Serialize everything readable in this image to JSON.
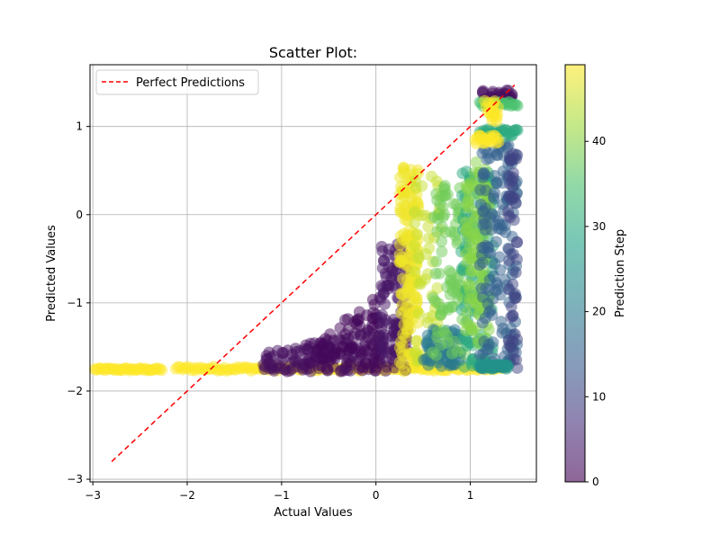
{
  "chart_data": {
    "type": "scatter",
    "title": "Scatter Plot:",
    "xlabel": "Actual Values",
    "ylabel": "Predicted Values",
    "xlim": [
      -3.03,
      1.7
    ],
    "ylim": [
      -3.03,
      1.7
    ],
    "xticks": [
      {
        "value": -3,
        "label": "−3"
      },
      {
        "value": -2,
        "label": "−2"
      },
      {
        "value": -1,
        "label": "−1"
      },
      {
        "value": 0,
        "label": "0"
      },
      {
        "value": 1,
        "label": "1"
      }
    ],
    "yticks": [
      {
        "value": -3,
        "label": "−3"
      },
      {
        "value": -2,
        "label": "−2"
      },
      {
        "value": -1,
        "label": "−1"
      },
      {
        "value": 0,
        "label": "0"
      },
      {
        "value": 1,
        "label": "1"
      }
    ],
    "grid": true,
    "legend": {
      "position": "top-left",
      "entries": [
        "Perfect Predictions"
      ]
    },
    "reference_line": {
      "name": "Perfect Predictions",
      "x": [
        -2.8,
        1.47
      ],
      "y": [
        -2.8,
        1.47
      ],
      "color": "#ff0000",
      "style": "dashed"
    },
    "colorbar": {
      "label": "Prediction Step",
      "range": [
        0,
        49
      ],
      "ticks": [
        {
          "value": 0,
          "label": "0"
        },
        {
          "value": 10,
          "label": "10"
        },
        {
          "value": 20,
          "label": "20"
        },
        {
          "value": 30,
          "label": "30"
        },
        {
          "value": 40,
          "label": "40"
        }
      ],
      "colormap": [
        "#440154",
        "#46327e",
        "#365c8d",
        "#277f8e",
        "#1fa187",
        "#4ac16d",
        "#a0da39",
        "#fde725"
      ],
      "alpha": 0.5
    },
    "clusters": [
      {
        "step": 49,
        "x_range": [
          -2.98,
          -2.27
        ],
        "y_range": [
          -1.77,
          -1.74
        ],
        "count": 40,
        "shape": "band"
      },
      {
        "step": 49,
        "x_range": [
          -2.12,
          1.37
        ],
        "y_range": [
          -1.77,
          -1.72
        ],
        "count": 150,
        "shape": "band"
      },
      {
        "step": 2,
        "x_range": [
          -1.2,
          0.35
        ],
        "y_range": [
          -1.78,
          -1.2
        ],
        "count": 170,
        "shape": "triangle"
      },
      {
        "step": 1,
        "x_range": [
          -0.7,
          0.05
        ],
        "y_range": [
          -1.78,
          -0.9
        ],
        "count": 70,
        "shape": "triangle"
      },
      {
        "step": 3,
        "x_range": [
          0.05,
          0.35
        ],
        "y_range": [
          -1.6,
          -0.25
        ],
        "count": 90,
        "shape": "rect"
      },
      {
        "step": 48,
        "x_range": [
          0.25,
          0.45
        ],
        "y_range": [
          -1.78,
          0.6
        ],
        "count": 150,
        "shape": "rect"
      },
      {
        "step": 45,
        "x_range": [
          0.4,
          0.7
        ],
        "y_range": [
          -1.7,
          0.5
        ],
        "count": 60,
        "shape": "rect"
      },
      {
        "step": 20,
        "x_range": [
          0.5,
          0.9
        ],
        "y_range": [
          -1.72,
          -1.3
        ],
        "count": 60,
        "shape": "rect"
      },
      {
        "step": 38,
        "x_range": [
          0.6,
          0.95
        ],
        "y_range": [
          -1.6,
          0.5
        ],
        "count": 90,
        "shape": "rect"
      },
      {
        "step": 30,
        "x_range": [
          0.9,
          1.25
        ],
        "y_range": [
          -1.73,
          0.5
        ],
        "count": 110,
        "shape": "rect"
      },
      {
        "step": 40,
        "x_range": [
          0.95,
          1.2
        ],
        "y_range": [
          -1.5,
          0.6
        ],
        "count": 110,
        "shape": "rect"
      },
      {
        "step": 15,
        "x_range": [
          1.1,
          1.5
        ],
        "y_range": [
          -1.75,
          0.8
        ],
        "count": 150,
        "shape": "rect"
      },
      {
        "step": 10,
        "x_range": [
          1.4,
          1.5
        ],
        "y_range": [
          -1.75,
          0.7
        ],
        "count": 50,
        "shape": "rect"
      },
      {
        "step": 25,
        "x_range": [
          1.1,
          1.4
        ],
        "y_range": [
          -1.75,
          -1.7
        ],
        "count": 50,
        "shape": "band"
      },
      {
        "step": 2,
        "x_range": [
          1.1,
          1.45
        ],
        "y_range": [
          1.3,
          1.42
        ],
        "count": 30,
        "shape": "rect"
      },
      {
        "step": 35,
        "x_range": [
          1.1,
          1.5
        ],
        "y_range": [
          1.23,
          1.28
        ],
        "count": 25,
        "shape": "band"
      },
      {
        "step": 30,
        "x_range": [
          1.1,
          1.5
        ],
        "y_range": [
          0.88,
          0.97
        ],
        "count": 30,
        "shape": "band"
      },
      {
        "step": 49,
        "x_range": [
          1.05,
          1.3
        ],
        "y_range": [
          0.8,
          0.9
        ],
        "count": 20,
        "shape": "band"
      },
      {
        "step": 49,
        "x_range": [
          1.15,
          1.3
        ],
        "y_range": [
          1.05,
          1.3
        ],
        "count": 20,
        "shape": "rect"
      }
    ]
  }
}
